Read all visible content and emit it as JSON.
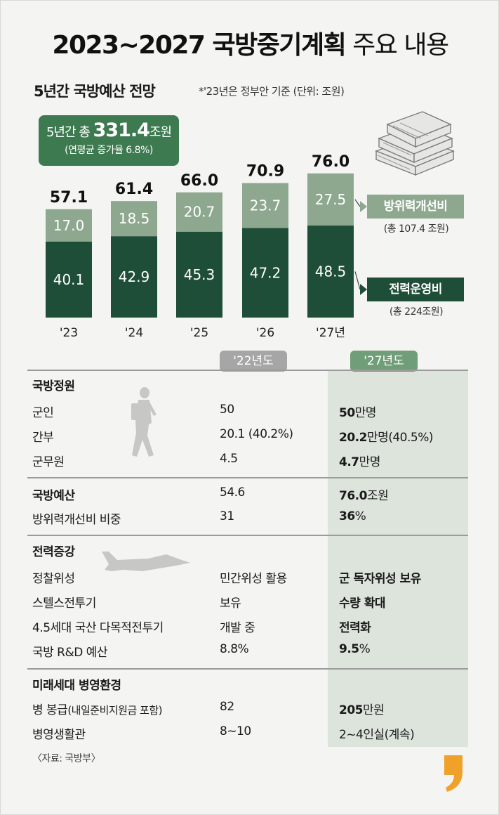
{
  "title_bold": "2023~2027 국방중기계획",
  "title_light": " 주요 내용",
  "subtitle": "5년간 국방예산 전망",
  "note": "*'23년은 정부안 기준   (단위: 조원)",
  "total": {
    "prefix": "5년간 총 ",
    "value": "331.4",
    "suffix": "조원",
    "growth": "(연평균 증가율 6.8%)"
  },
  "colors": {
    "dark": "#1e4d38",
    "light": "#8ea890",
    "accent": "#3d7a50"
  },
  "chart_data": {
    "type": "bar",
    "stacked": true,
    "categories": [
      "'23",
      "'24",
      "'25",
      "'26",
      "'27년"
    ],
    "series": [
      {
        "name": "전력운영비",
        "values": [
          40.1,
          42.9,
          45.3,
          47.2,
          48.5
        ]
      },
      {
        "name": "방위력개선비",
        "values": [
          17.0,
          18.5,
          20.7,
          23.7,
          27.5
        ]
      }
    ],
    "totals": [
      "57.1",
      "61.4",
      "66.0",
      "70.9",
      "76.0"
    ],
    "value_labels": {
      "lower": [
        "40.1",
        "42.9",
        "45.3",
        "47.2",
        "48.5"
      ],
      "upper": [
        "17.0",
        "18.5",
        "20.7",
        "23.7",
        "27.5"
      ]
    }
  },
  "legend": {
    "upper": {
      "label": "방위력개선비",
      "sub": "(총 107.4 조원)"
    },
    "lower": {
      "label": "전력운영비",
      "sub": "(총 224조원)"
    }
  },
  "table": {
    "head_22": "'22년도",
    "head_27": "'27년도",
    "sections": {
      "s1": "국방정원",
      "s2_label": "국방예산",
      "s2_v22": "54.6",
      "s2_v27b": "76.0",
      "s2_v27n": "조원",
      "s3": "전력증강",
      "s4": "미래세대 병영환경"
    },
    "rows": [
      {
        "label": "군인",
        "v22": "50",
        "v27b": "50",
        "v27n": "만명"
      },
      {
        "label": "간부",
        "v22": "20.1 (40.2%)",
        "v27b": "20.2",
        "v27n": "만명(40.5%)"
      },
      {
        "label": "군무원",
        "v22": "4.5",
        "v27b": "4.7",
        "v27n": "만명"
      },
      {
        "label": "방위력개선비 비중",
        "v22": "31",
        "v27b": "36",
        "v27n": "%"
      },
      {
        "label": "정찰위성",
        "v22": "민간위성 활용",
        "v27b": "군 독자위성 보유",
        "v27n": ""
      },
      {
        "label": "스텔스전투기",
        "v22": "보유",
        "v27b": "수량 확대",
        "v27n": ""
      },
      {
        "label": "4.5세대 국산 다목적전투기",
        "v22": "개발 중",
        "v27b": "전력화",
        "v27n": ""
      },
      {
        "label": "국방 R&D 예산",
        "v22": "8.8%",
        "v27b": "9.5",
        "v27n": "%"
      },
      {
        "label": "병 봉급",
        "label_note": "(내일준비지원금 포함)",
        "v22": "82",
        "v27b": "205",
        "v27n": "만원"
      },
      {
        "label": "병영생활관",
        "v22": "8~10",
        "v27b": "",
        "v27n": "2~4인실(계속)"
      }
    ]
  },
  "source": "〈자료: 국방부〉",
  "icons": [
    "money-stack-icon",
    "soldier-icon",
    "fighter-jet-icon",
    "publisher-mark-icon"
  ]
}
